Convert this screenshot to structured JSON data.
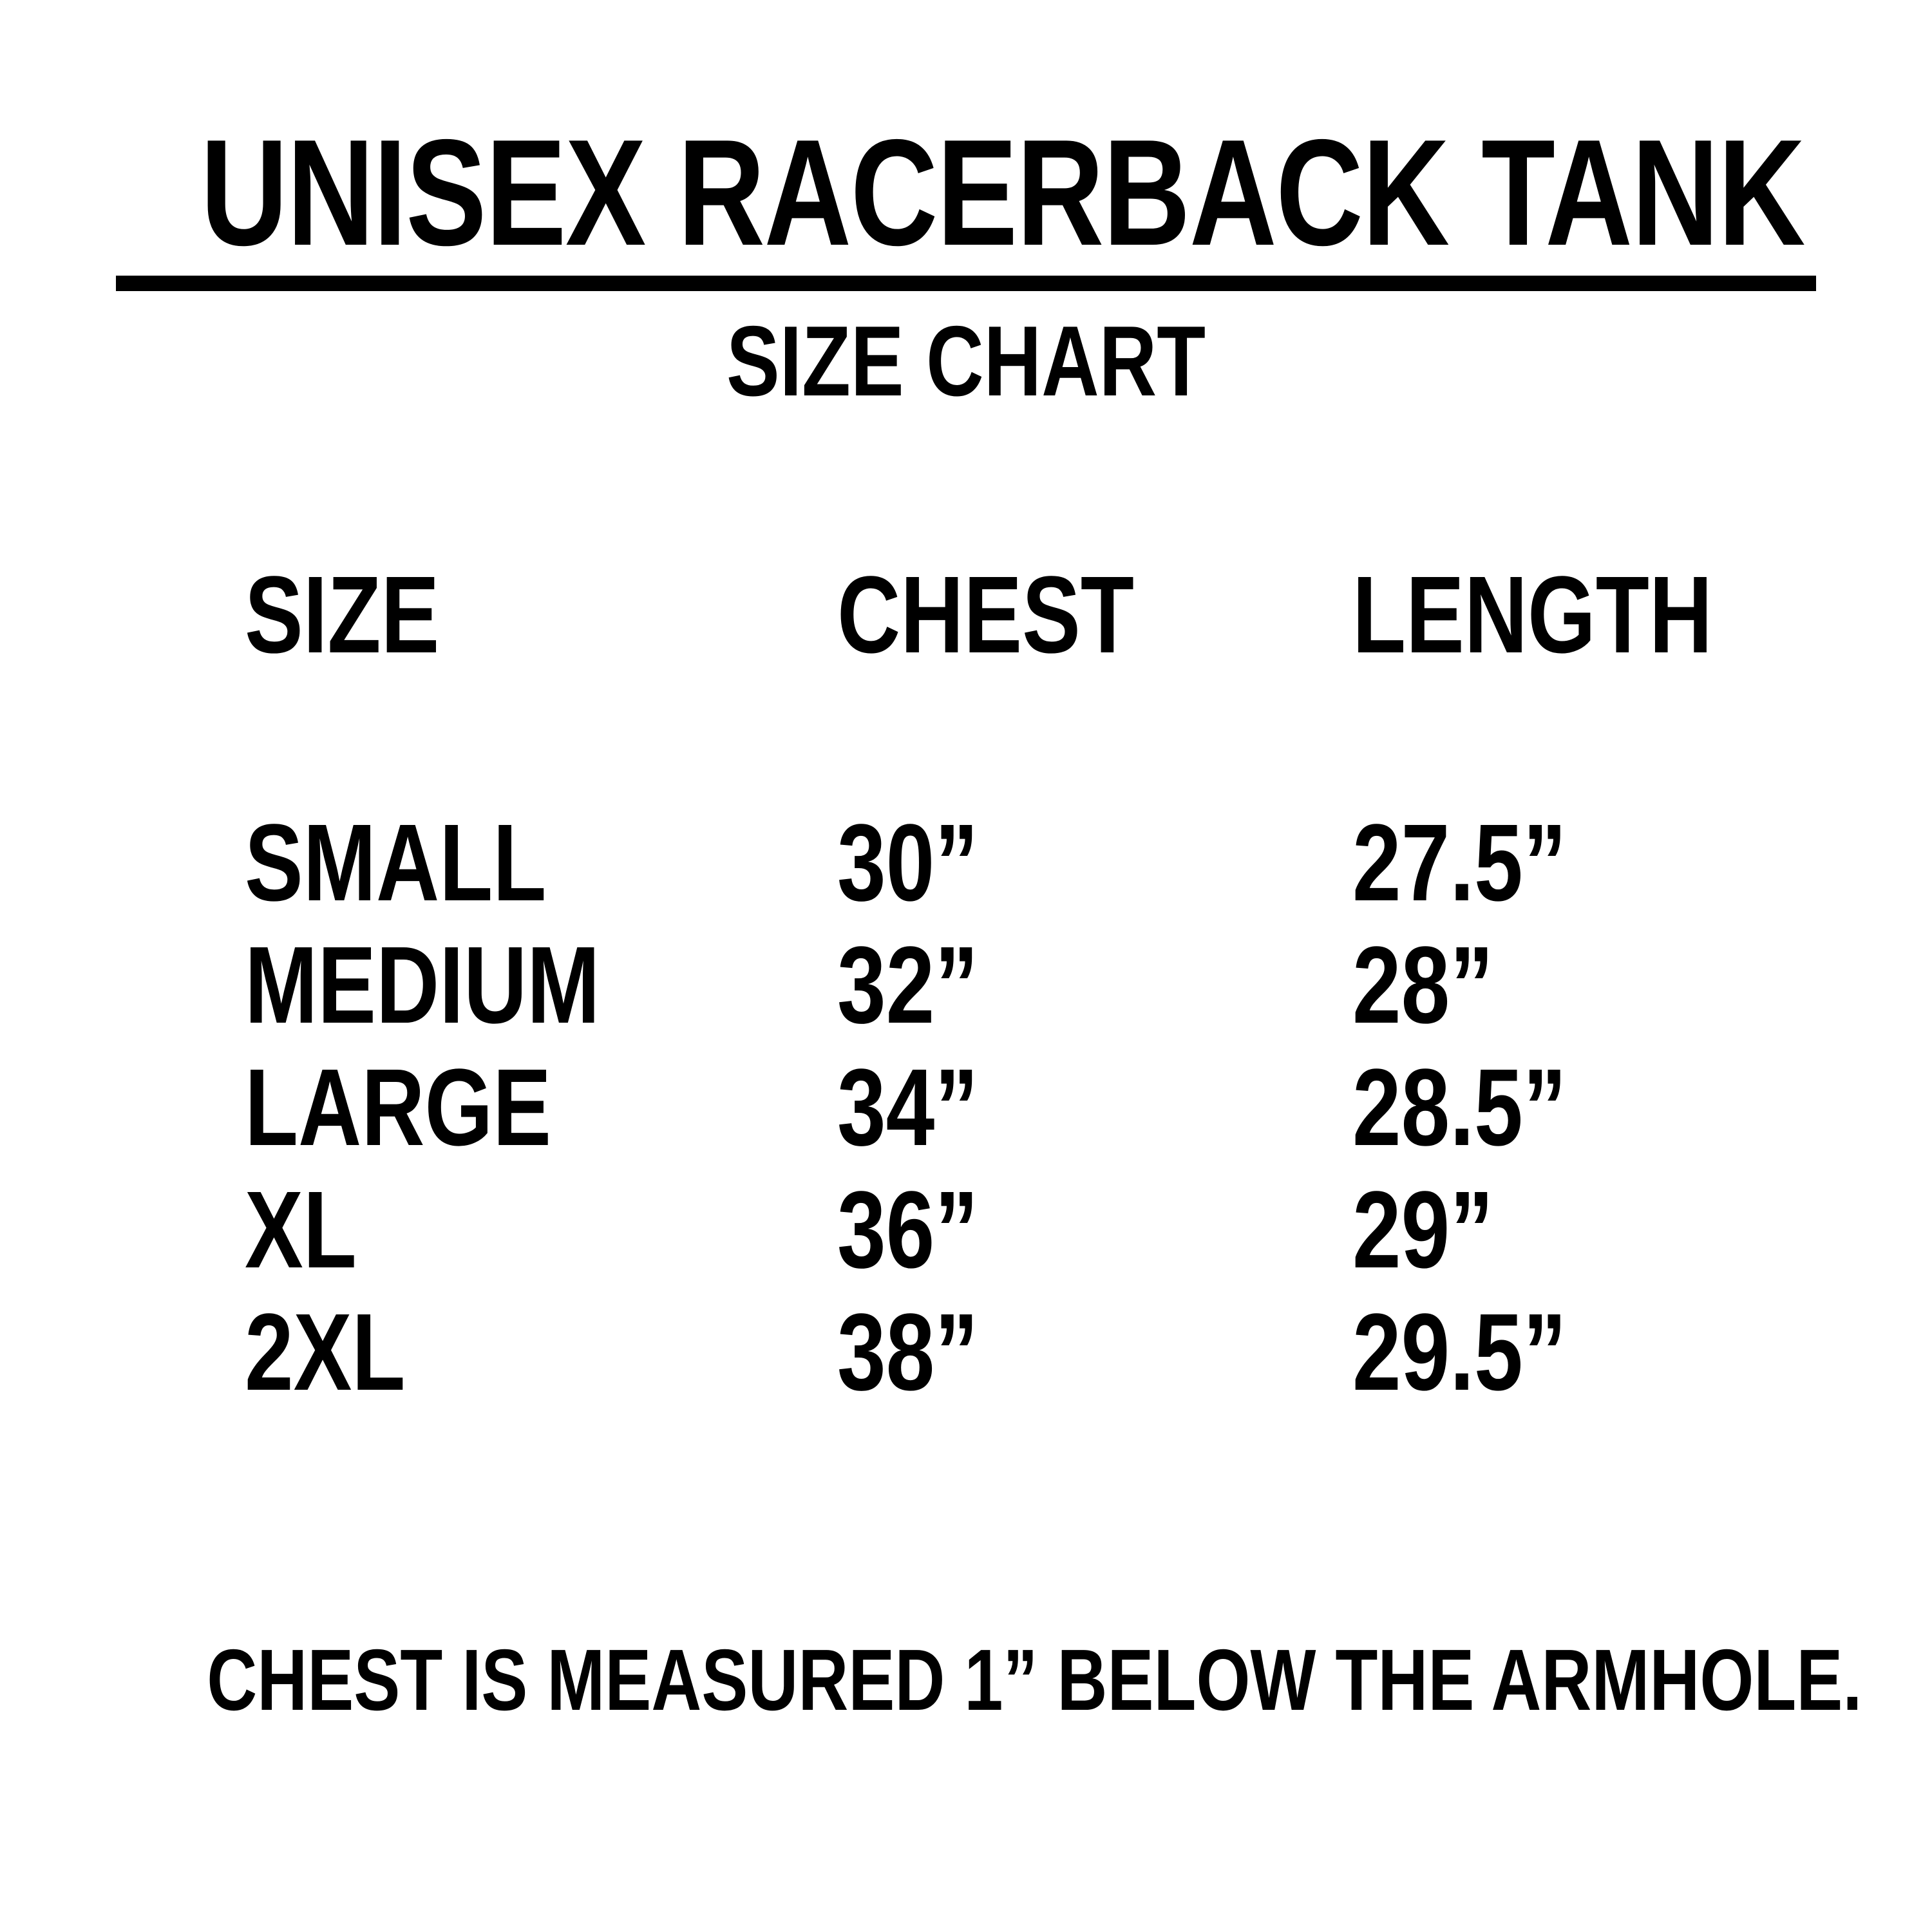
{
  "colors": {
    "text": "#000000",
    "background": "#ffffff"
  },
  "chart_data": {
    "type": "table",
    "title": "UNISEX RACERBACK TANK",
    "subtitle": "SIZE CHART",
    "columns": {
      "size": "SIZE",
      "chest": "CHEST",
      "length": "LENGTH"
    },
    "rows": [
      {
        "size": "SMALL",
        "chest": "30”",
        "length": "27.5”"
      },
      {
        "size": "MEDIUM",
        "chest": "32”",
        "length": "28”"
      },
      {
        "size": "LARGE",
        "chest": "34”",
        "length": "28.5”"
      },
      {
        "size": "XL",
        "chest": "36”",
        "length": "29”"
      },
      {
        "size": "2XL",
        "chest": "38”",
        "length": "29.5”"
      }
    ],
    "footnote": "CHEST IS MEASURED 1” BELOW THE ARMHOLE."
  }
}
